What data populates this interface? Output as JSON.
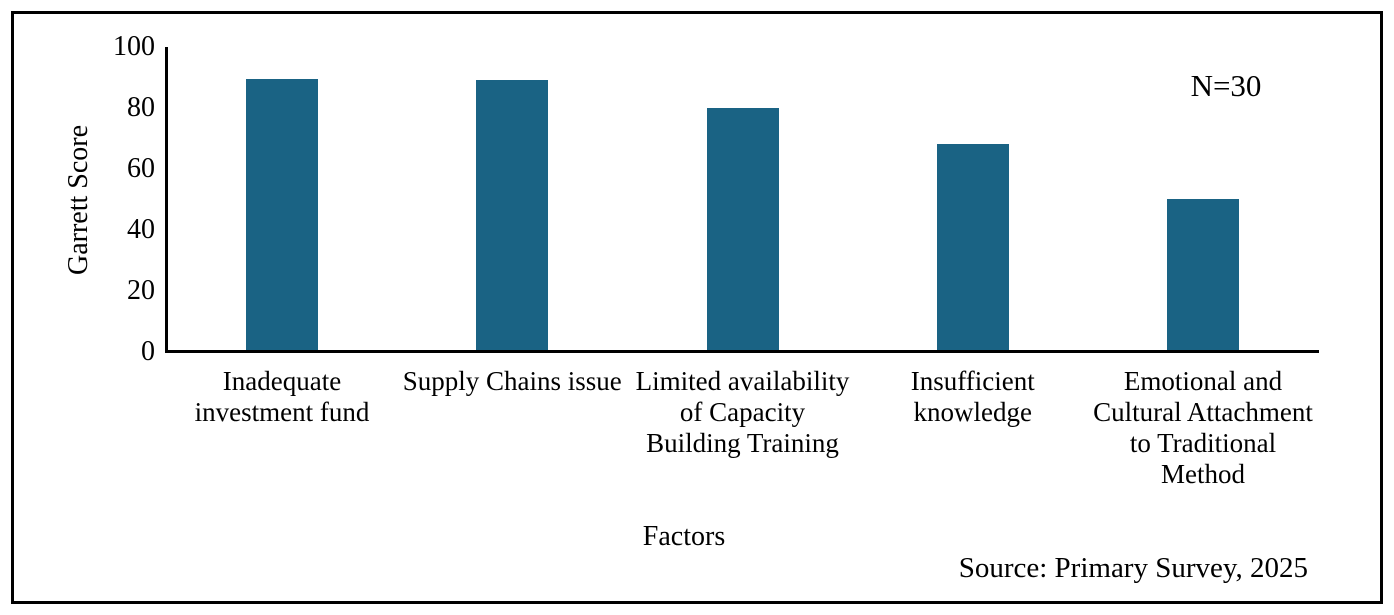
{
  "figure": {
    "ylabel": "Garrett Score",
    "xlabel": "Factors",
    "annotation": "N=30",
    "source_note": "Source: Primary Survey, 2025"
  },
  "chart_data": {
    "type": "bar",
    "title": "",
    "categories": [
      "Inadequate investment fund",
      "Supply Chains issue",
      "Limited availability of Capacity Building Training",
      "Insufficient knowledge",
      "Emotional and Cultural Attachment to Traditional Method"
    ],
    "category_label_lines": [
      [
        "Inadequate",
        "investment fund"
      ],
      [
        "Supply Chains issue"
      ],
      [
        "Limited availability",
        "of Capacity",
        "Building Training"
      ],
      [
        "Insufficient",
        "knowledge"
      ],
      [
        "Emotional and",
        "Cultural Attachment",
        "to Traditional",
        "Method"
      ]
    ],
    "values": [
      89.1,
      88.6,
      79.6,
      67.8,
      49.6
    ],
    "xlabel": "Factors",
    "ylabel": "Garrett Score",
    "ylim": [
      0,
      100
    ],
    "yticks": [
      0,
      20,
      40,
      60,
      80,
      100
    ],
    "bar_color": "#1A6384",
    "annotation": "N=30",
    "source_note": "Source: Primary Survey, 2025",
    "legend": null,
    "grid": false
  }
}
